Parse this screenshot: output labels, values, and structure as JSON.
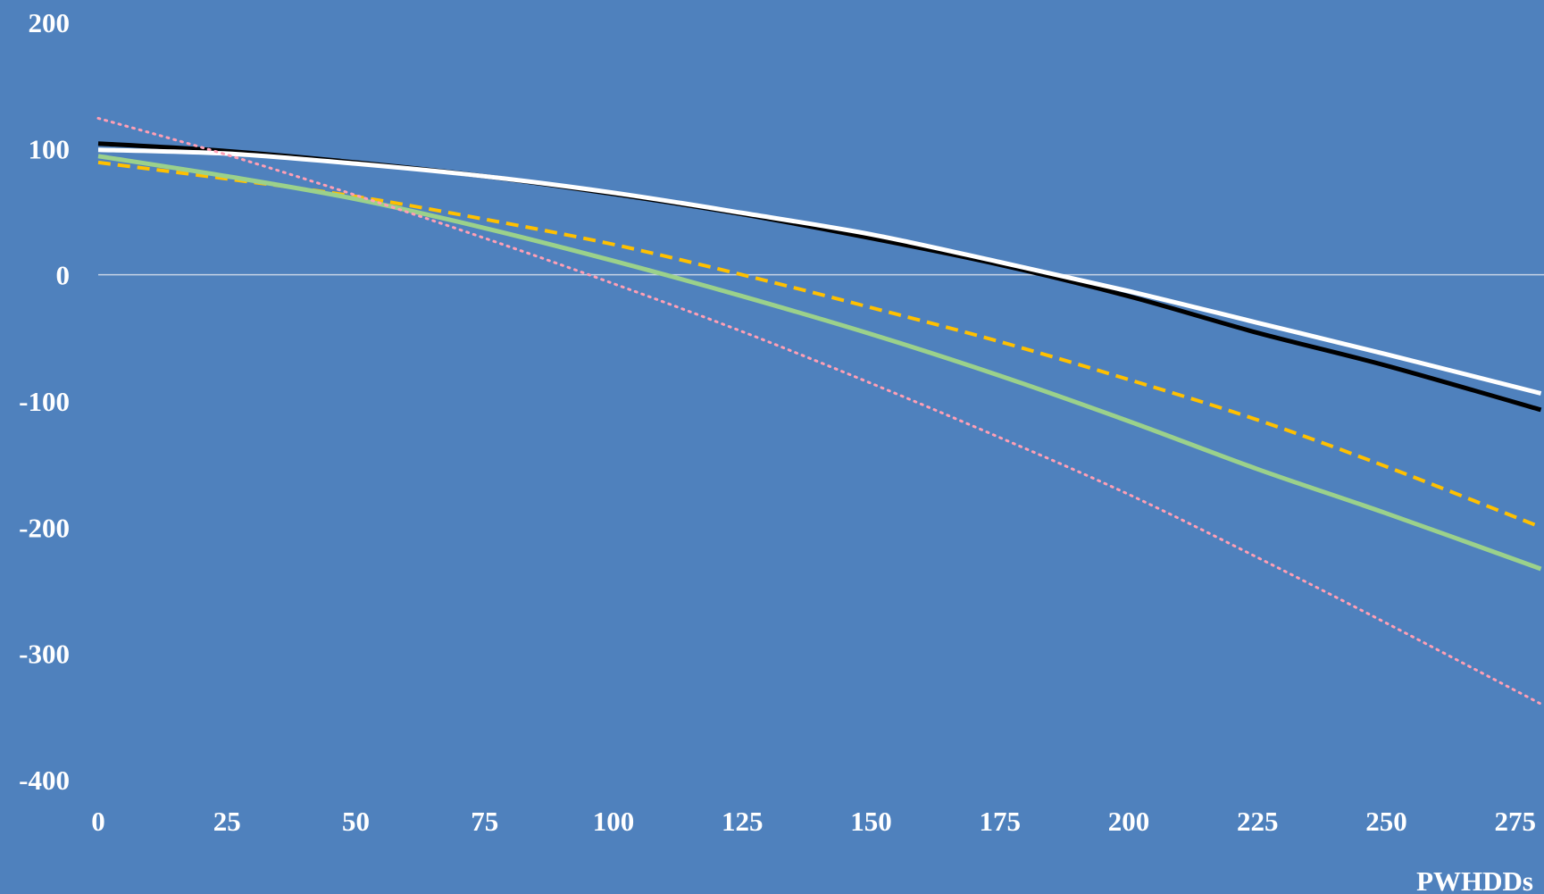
{
  "chart_data": {
    "type": "line",
    "title": "",
    "xlabel": "PWHDDs",
    "ylabel": "",
    "xlim": [
      0,
      280
    ],
    "ylim": [
      -400,
      200
    ],
    "x_ticks": [
      "0",
      "25",
      "50",
      "75",
      "100",
      "125",
      "150",
      "175",
      "200",
      "225",
      "250",
      "275"
    ],
    "y_ticks": [
      "200",
      "100",
      "0",
      "-100",
      "-200",
      "-300",
      "-400"
    ],
    "grid": false,
    "zero_line": true,
    "legend": "none",
    "colors": {
      "background": "#4f81bd",
      "text": "#ffffff",
      "zero_line": "#c8d4e6"
    },
    "x": [
      0,
      25,
      50,
      75,
      100,
      125,
      150,
      175,
      200,
      225,
      250,
      280
    ],
    "series": [
      {
        "color": "#000000",
        "style": "solid",
        "values": [
          104,
          98,
          89,
          78,
          64,
          48,
          29,
          8,
          -17,
          -46,
          -72,
          -107
        ]
      },
      {
        "color": "#ffffff",
        "style": "solid",
        "values": [
          99,
          96,
          88,
          78,
          65,
          49,
          32,
          10,
          -13,
          -38,
          -63,
          -94
        ]
      },
      {
        "color": "#ffc000",
        "style": "dashed",
        "values": [
          89,
          76,
          62,
          44,
          24,
          0,
          -26,
          -53,
          -83,
          -115,
          -152,
          -200
        ]
      },
      {
        "color": "#9bd18b",
        "style": "solid",
        "values": [
          94,
          78,
          60,
          37,
          11,
          -17,
          -47,
          -80,
          -116,
          -154,
          -189,
          -233
        ]
      },
      {
        "color": "#ff9fb5",
        "style": "dotted",
        "values": [
          124,
          95,
          63,
          29,
          -7,
          -45,
          -86,
          -129,
          -174,
          -224,
          -276,
          -340
        ]
      }
    ]
  }
}
